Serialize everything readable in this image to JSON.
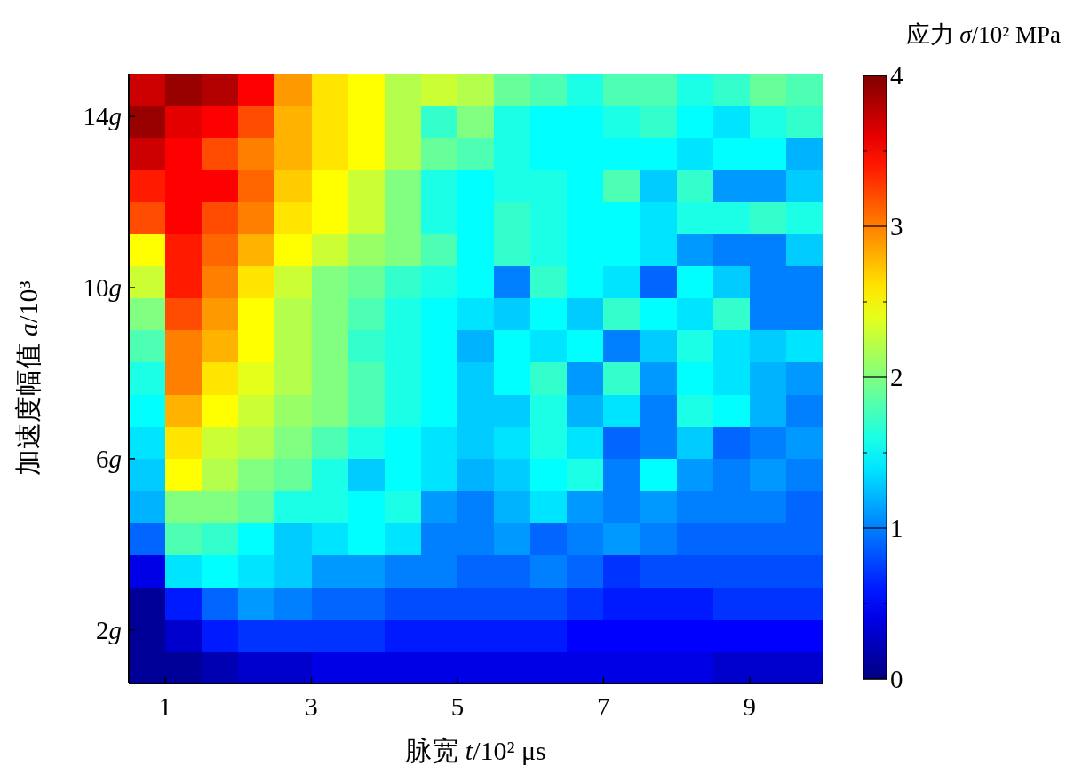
{
  "chart_data": {
    "type": "heatmap",
    "xlabel": "脉宽 t/10² μs",
    "ylabel": "加速度幅值 a/10³",
    "clabel": "应力 σ/10² MPa",
    "xlim": [
      0.5,
      10
    ],
    "xticks": [
      1,
      3,
      5,
      7,
      9
    ],
    "ylim": [
      0.75,
      15
    ],
    "yticks": [
      {
        "value": 2,
        "label": "2g"
      },
      {
        "value": 6,
        "label": "6g"
      },
      {
        "value": 10,
        "label": "10g"
      },
      {
        "value": 14,
        "label": "14g"
      }
    ],
    "clim": [
      0,
      4
    ],
    "cticks": [
      0,
      {
        "value": 0.5,
        "label": null
      },
      1,
      {
        "value": 1.5,
        "label": null
      },
      2,
      {
        "value": 2.5,
        "label": null
      },
      3,
      {
        "value": 3.5,
        "label": null
      },
      4
    ],
    "cells": [
      [
        3.7,
        3.9,
        3.8,
        3.5,
        2.9,
        2.6,
        2.5,
        2.2,
        2.3,
        2.2,
        1.9,
        1.8,
        1.6,
        1.8,
        1.8,
        1.6,
        1.7,
        1.9,
        1.8
      ],
      [
        3.9,
        3.6,
        3.5,
        3.2,
        2.8,
        2.6,
        2.5,
        2.2,
        1.7,
        2.0,
        1.6,
        1.5,
        1.5,
        1.6,
        1.7,
        1.5,
        1.4,
        1.6,
        1.7
      ],
      [
        3.7,
        3.5,
        3.2,
        3.0,
        2.8,
        2.6,
        2.5,
        2.2,
        1.9,
        1.8,
        1.6,
        1.5,
        1.5,
        1.5,
        1.5,
        1.4,
        1.5,
        1.5,
        1.2
      ],
      [
        3.4,
        3.5,
        3.5,
        3.1,
        2.7,
        2.5,
        2.3,
        2.0,
        1.6,
        1.5,
        1.6,
        1.6,
        1.5,
        1.8,
        1.3,
        1.7,
        1.1,
        1.1,
        1.3
      ],
      [
        3.2,
        3.5,
        3.2,
        3.0,
        2.6,
        2.5,
        2.3,
        2.0,
        1.6,
        1.5,
        1.7,
        1.6,
        1.5,
        1.5,
        1.4,
        1.6,
        1.6,
        1.7,
        1.6
      ],
      [
        2.5,
        3.4,
        3.1,
        2.8,
        2.5,
        2.3,
        2.1,
        2.0,
        1.8,
        1.5,
        1.7,
        1.6,
        1.5,
        1.5,
        1.4,
        1.1,
        1.0,
        1.0,
        1.3
      ],
      [
        2.3,
        3.4,
        3.0,
        2.6,
        2.3,
        2.0,
        1.9,
        1.7,
        1.6,
        1.5,
        1.0,
        1.7,
        1.5,
        1.4,
        0.9,
        1.5,
        1.3,
        1.0,
        1.0
      ],
      [
        2.0,
        3.2,
        2.9,
        2.5,
        2.2,
        2.0,
        1.8,
        1.6,
        1.5,
        1.4,
        1.3,
        1.5,
        1.3,
        1.7,
        1.5,
        1.4,
        1.7,
        1.0,
        1.0
      ],
      [
        1.8,
        3.0,
        2.8,
        2.5,
        2.2,
        2.0,
        1.7,
        1.6,
        1.5,
        1.2,
        1.5,
        1.4,
        1.5,
        1.0,
        1.3,
        1.6,
        1.4,
        1.3,
        1.4
      ],
      [
        1.6,
        3.0,
        2.6,
        2.4,
        2.2,
        2.0,
        1.8,
        1.6,
        1.5,
        1.3,
        1.5,
        1.7,
        1.1,
        1.7,
        1.1,
        1.5,
        1.4,
        1.2,
        1.1
      ],
      [
        1.5,
        2.8,
        2.5,
        2.3,
        2.1,
        2.0,
        1.8,
        1.6,
        1.5,
        1.3,
        1.3,
        1.6,
        1.2,
        1.4,
        1.0,
        1.6,
        1.5,
        1.2,
        1.0
      ],
      [
        1.4,
        2.6,
        2.3,
        2.2,
        2.0,
        1.8,
        1.6,
        1.5,
        1.4,
        1.3,
        1.4,
        1.6,
        1.4,
        0.9,
        1.0,
        1.3,
        0.9,
        1.0,
        1.1
      ],
      [
        1.3,
        2.5,
        2.2,
        2.0,
        1.9,
        1.6,
        1.3,
        1.5,
        1.4,
        1.2,
        1.3,
        1.5,
        1.6,
        1.0,
        1.5,
        1.1,
        1.0,
        1.1,
        1.0
      ],
      [
        1.2,
        2.0,
        2.0,
        1.9,
        1.6,
        1.6,
        1.5,
        1.6,
        1.1,
        1.0,
        1.2,
        1.4,
        1.1,
        1.0,
        1.1,
        1.0,
        1.0,
        1.0,
        0.9
      ],
      [
        0.9,
        1.8,
        1.7,
        1.5,
        1.3,
        1.4,
        1.5,
        1.4,
        1.0,
        1.0,
        1.1,
        0.9,
        1.0,
        1.1,
        1.0,
        0.9,
        0.9,
        0.9,
        0.9
      ],
      [
        0.4,
        1.4,
        1.5,
        1.4,
        1.3,
        1.1,
        1.1,
        1.0,
        1.0,
        0.9,
        0.9,
        1.0,
        0.9,
        0.7,
        0.8,
        0.8,
        0.8,
        0.8,
        0.8
      ],
      [
        0.1,
        0.6,
        0.9,
        1.1,
        1.0,
        0.9,
        0.9,
        0.8,
        0.8,
        0.8,
        0.8,
        0.8,
        0.7,
        0.6,
        0.6,
        0.6,
        0.7,
        0.7,
        0.7
      ],
      [
        0.1,
        0.3,
        0.6,
        0.7,
        0.7,
        0.7,
        0.7,
        0.6,
        0.6,
        0.6,
        0.6,
        0.6,
        0.5,
        0.5,
        0.5,
        0.5,
        0.5,
        0.5,
        0.5
      ],
      [
        0.1,
        0.1,
        0.2,
        0.3,
        0.3,
        0.4,
        0.4,
        0.4,
        0.4,
        0.4,
        0.4,
        0.4,
        0.4,
        0.4,
        0.4,
        0.4,
        0.3,
        0.3,
        0.3
      ]
    ]
  }
}
